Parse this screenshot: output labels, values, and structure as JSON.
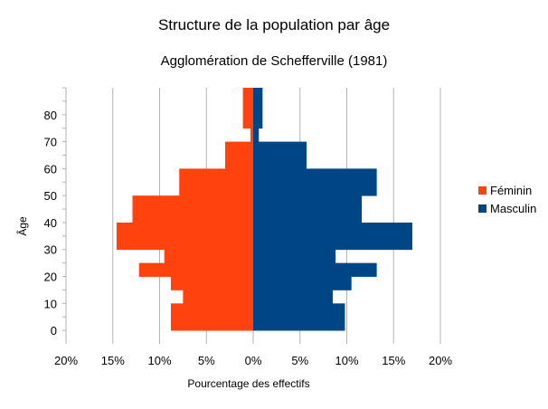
{
  "chart_data": {
    "type": "bar",
    "orientation": "horizontal-pyramid",
    "title": "Structure de la population par âge",
    "subtitle": "Agglomération de Schefferville (1981)",
    "xlabel": "Pourcentage des effectifs",
    "ylabel": "Âge",
    "x_ticks": [
      "20%",
      "15%",
      "10%",
      "5%",
      "0%",
      "5%",
      "10%",
      "15%",
      "20%"
    ],
    "xlim": [
      -20,
      20
    ],
    "y_ticks": [
      "0",
      "10",
      "20",
      "30",
      "40",
      "50",
      "60",
      "70",
      "80"
    ],
    "ylim": [
      -5,
      90
    ],
    "grid": true,
    "legend_position": "right",
    "age_groups_start": [
      0,
      5,
      10,
      15,
      20,
      25,
      30,
      35,
      40,
      45,
      50,
      55,
      60,
      65,
      70,
      75,
      80,
      85
    ],
    "series": [
      {
        "name": "Féminin",
        "color": "#ff420e",
        "values": [
          8.8,
          8.8,
          7.5,
          8.8,
          12.2,
          9.5,
          14.6,
          14.6,
          12.9,
          12.9,
          7.9,
          7.9,
          3.0,
          3.0,
          0.3,
          1.1,
          1.1,
          1.1
        ]
      },
      {
        "name": "Masculin",
        "color": "#004586",
        "values": [
          9.8,
          9.8,
          8.5,
          10.5,
          13.2,
          8.8,
          17.0,
          17.0,
          11.6,
          11.6,
          13.2,
          13.2,
          5.7,
          5.7,
          0.6,
          1.0,
          1.0,
          1.0
        ]
      }
    ]
  }
}
